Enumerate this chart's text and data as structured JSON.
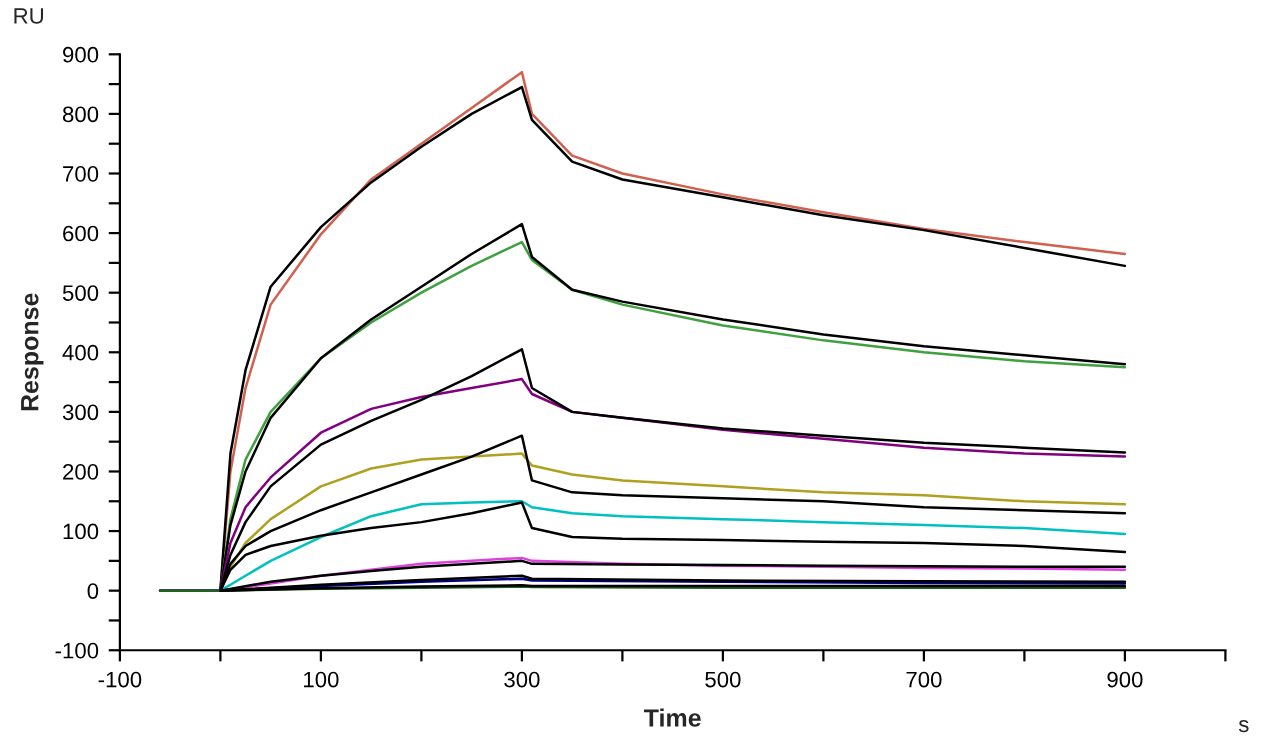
{
  "chart_data": {
    "type": "line",
    "xlabel": "Time",
    "ylabel": "Response",
    "annotations": [
      "RU",
      "s"
    ],
    "xlim": [
      -100,
      1000
    ],
    "ylim": [
      -100,
      900
    ],
    "xticks": [
      -100,
      {
        "value": 0,
        "label": null
      },
      100,
      {
        "value": 200,
        "label": null
      },
      300,
      {
        "value": 400,
        "label": null
      },
      500,
      {
        "value": 600,
        "label": null
      },
      700,
      {
        "value": 800,
        "label": null
      },
      900,
      {
        "value": 1000,
        "label": null
      }
    ],
    "yticks": [
      -100,
      {
        "value": -50,
        "label": null
      },
      0,
      {
        "value": 50,
        "label": null
      },
      100,
      {
        "value": 150,
        "label": null
      },
      200,
      {
        "value": 250,
        "label": null
      },
      300,
      {
        "value": 350,
        "label": null
      },
      400,
      {
        "value": 450,
        "label": null
      },
      500,
      {
        "value": 550,
        "label": null
      },
      600,
      {
        "value": 650,
        "label": null
      },
      700,
      {
        "value": 750,
        "label": null
      },
      800,
      {
        "value": 850,
        "label": null
      },
      900
    ],
    "grid": false,
    "marker": "none",
    "line_style": "solid",
    "series": [
      {
        "color": "#d06050",
        "x": [
          -60,
          0,
          10,
          25,
          50,
          100,
          150,
          200,
          250,
          300,
          310,
          350,
          400,
          500,
          600,
          700,
          800,
          900
        ],
        "values": [
          0,
          0,
          200,
          340,
          480,
          598,
          690,
          750,
          810,
          870,
          800,
          730,
          700,
          665,
          635,
          607,
          585,
          565
        ]
      },
      {
        "color": "#000000",
        "x": [
          0,
          10,
          25,
          50,
          100,
          150,
          200,
          250,
          300,
          310,
          350,
          400,
          500,
          600,
          700,
          800,
          900
        ],
        "values": [
          0,
          230,
          370,
          510,
          610,
          685,
          745,
          800,
          845,
          790,
          720,
          690,
          660,
          630,
          605,
          575,
          545
        ]
      },
      {
        "color": "#40a040",
        "x": [
          -60,
          0,
          10,
          25,
          50,
          100,
          150,
          200,
          250,
          300,
          310,
          350,
          400,
          500,
          600,
          700,
          800,
          900
        ],
        "values": [
          0,
          0,
          120,
          220,
          300,
          390,
          450,
          500,
          545,
          585,
          555,
          505,
          480,
          445,
          420,
          400,
          385,
          375
        ]
      },
      {
        "color": "#000000",
        "x": [
          0,
          10,
          25,
          50,
          100,
          150,
          200,
          250,
          300,
          310,
          350,
          400,
          500,
          600,
          700,
          800,
          900
        ],
        "values": [
          0,
          110,
          200,
          290,
          390,
          455,
          510,
          565,
          615,
          560,
          505,
          485,
          455,
          430,
          410,
          395,
          380
        ]
      },
      {
        "color": "#800080",
        "x": [
          -60,
          0,
          10,
          25,
          50,
          100,
          150,
          200,
          250,
          300,
          310,
          350,
          400,
          500,
          600,
          700,
          800,
          900
        ],
        "values": [
          0,
          0,
          80,
          140,
          190,
          265,
          305,
          325,
          340,
          355,
          330,
          300,
          290,
          270,
          255,
          240,
          230,
          225
        ]
      },
      {
        "color": "#000000",
        "x": [
          0,
          10,
          25,
          50,
          100,
          150,
          200,
          250,
          300,
          310,
          350,
          400,
          500,
          600,
          700,
          800,
          900
        ],
        "values": [
          0,
          60,
          115,
          175,
          245,
          285,
          320,
          360,
          405,
          340,
          300,
          290,
          272,
          260,
          248,
          240,
          232
        ]
      },
      {
        "color": "#b0a020",
        "x": [
          -60,
          0,
          10,
          25,
          50,
          100,
          150,
          200,
          250,
          300,
          310,
          350,
          400,
          500,
          600,
          700,
          800,
          900
        ],
        "values": [
          0,
          0,
          40,
          80,
          120,
          175,
          205,
          220,
          225,
          230,
          210,
          195,
          185,
          175,
          165,
          160,
          150,
          145
        ]
      },
      {
        "color": "#000000",
        "x": [
          0,
          10,
          25,
          50,
          100,
          150,
          200,
          250,
          300,
          310,
          350,
          400,
          500,
          600,
          700,
          800,
          900
        ],
        "values": [
          0,
          45,
          75,
          100,
          135,
          165,
          195,
          225,
          260,
          185,
          165,
          160,
          155,
          150,
          140,
          135,
          130
        ]
      },
      {
        "color": "#00c0c0",
        "x": [
          -60,
          0,
          10,
          25,
          50,
          100,
          150,
          200,
          250,
          300,
          310,
          350,
          400,
          500,
          600,
          700,
          800,
          900
        ],
        "values": [
          0,
          0,
          10,
          25,
          50,
          90,
          125,
          145,
          148,
          150,
          140,
          130,
          125,
          120,
          115,
          110,
          105,
          95
        ]
      },
      {
        "color": "#000000",
        "x": [
          0,
          10,
          25,
          50,
          100,
          150,
          200,
          250,
          300,
          310,
          350,
          400,
          500,
          600,
          700,
          800,
          900
        ],
        "values": [
          0,
          35,
          60,
          75,
          92,
          105,
          115,
          130,
          148,
          105,
          90,
          87,
          85,
          82,
          80,
          75,
          65
        ]
      },
      {
        "color": "#e040e0",
        "x": [
          -60,
          0,
          50,
          100,
          150,
          200,
          250,
          300,
          310,
          400,
          500,
          600,
          700,
          800,
          900
        ],
        "values": [
          0,
          0,
          12,
          25,
          35,
          45,
          50,
          55,
          50,
          45,
          42,
          40,
          38,
          37,
          35
        ]
      },
      {
        "color": "#000000",
        "x": [
          0,
          50,
          100,
          150,
          200,
          250,
          300,
          310,
          400,
          500,
          600,
          700,
          800,
          900
        ],
        "values": [
          0,
          15,
          25,
          33,
          40,
          45,
          50,
          45,
          44,
          43,
          42,
          41,
          40,
          40
        ]
      },
      {
        "color": "#000080",
        "x": [
          -60,
          0,
          100,
          200,
          300,
          310,
          500,
          700,
          900
        ],
        "values": [
          0,
          0,
          8,
          15,
          20,
          17,
          15,
          13,
          12
        ]
      },
      {
        "color": "#000000",
        "x": [
          0,
          100,
          200,
          300,
          310,
          500,
          700,
          900
        ],
        "values": [
          0,
          10,
          18,
          25,
          20,
          17,
          16,
          15
        ]
      },
      {
        "color": "#206020",
        "x": [
          -60,
          0,
          100,
          200,
          300,
          310,
          500,
          700,
          900
        ],
        "values": [
          0,
          0,
          3,
          5,
          7,
          6,
          5,
          5,
          5
        ]
      },
      {
        "color": "#000000",
        "x": [
          0,
          100,
          200,
          300,
          310,
          500,
          700,
          900
        ],
        "values": [
          0,
          4,
          7,
          9,
          8,
          8,
          8,
          8
        ]
      }
    ]
  }
}
